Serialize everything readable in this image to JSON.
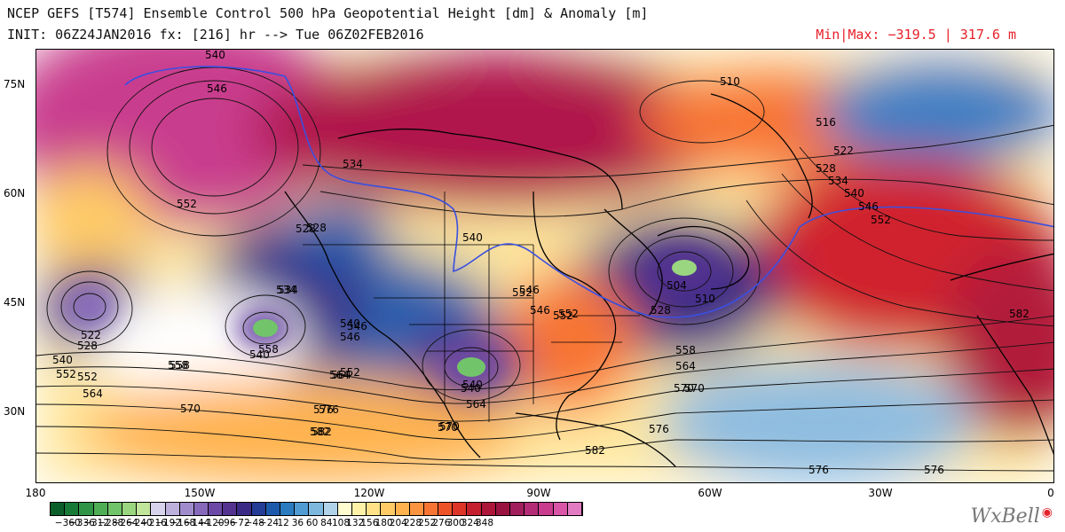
{
  "header": {
    "title": "NCEP GEFS [T574] Ensemble Control 500 hPa Geopotential Height [dm] & Anomaly [m]",
    "init": "INIT: 06Z24JAN2016 fx: [216] hr --> Tue 06Z02FEB2016",
    "minmax": "Min|Max: −319.5 | 317.6 m"
  },
  "axes": {
    "lat_labels": [
      "75N",
      "60N",
      "45N",
      "30N"
    ],
    "lon_labels": [
      "180",
      "150W",
      "120W",
      "90W",
      "60W",
      "30W",
      "0"
    ]
  },
  "contour_labels": [
    "540",
    "546",
    "552",
    "534",
    "528",
    "534",
    "540",
    "546",
    "552",
    "510",
    "516",
    "522",
    "528",
    "534",
    "540",
    "546",
    "552",
    "540",
    "546",
    "552",
    "504",
    "510",
    "528",
    "558",
    "564",
    "570",
    "576",
    "582",
    "582",
    "576",
    "570",
    "564",
    "558",
    "552",
    "546",
    "540",
    "522",
    "528",
    "540",
    "552",
    "564",
    "570",
    "576",
    "582",
    "558",
    "564",
    "570",
    "576",
    "528",
    "540",
    "546",
    "552",
    "534",
    "540",
    "552",
    "564",
    "570",
    "576",
    "582",
    "558"
  ],
  "colorbar": {
    "ticks": [
      "−360",
      "−336",
      "−312",
      "−288",
      "−264",
      "−240",
      "−216",
      "−192",
      "−168",
      "−144",
      "−120",
      "−96",
      "−72",
      "−48",
      "−24",
      "12",
      "36",
      "60",
      "84",
      "108",
      "132",
      "156",
      "180",
      "204",
      "228",
      "252",
      "276",
      "300",
      "324",
      "348"
    ],
    "colors": [
      "#0b5e2a",
      "#177a37",
      "#2f9446",
      "#4fad55",
      "#72c46a",
      "#9ad67f",
      "#c2e59c",
      "#d8d3ec",
      "#bdb0dd",
      "#a08ccd",
      "#8669ba",
      "#6c49a6",
      "#533290",
      "#3b2a85",
      "#243c95",
      "#1d5aab",
      "#2a7bc0",
      "#4f9bd2",
      "#7fb8de",
      "#b0d3ea",
      "#fffdd0",
      "#fff2a8",
      "#ffe187",
      "#ffcb66",
      "#ffb24e",
      "#fc9440",
      "#f87433",
      "#ee5328",
      "#dd3528",
      "#c4202d",
      "#ad1638",
      "#9a1340",
      "#a01f5c",
      "#b52c76",
      "#c93c8e",
      "#da55a8",
      "#e37bc2"
    ]
  },
  "colors": {
    "land_outline": "#000000",
    "contour": "#111111",
    "contour_540": "#3a4fe0"
  },
  "logo": {
    "text": "WxBell"
  }
}
